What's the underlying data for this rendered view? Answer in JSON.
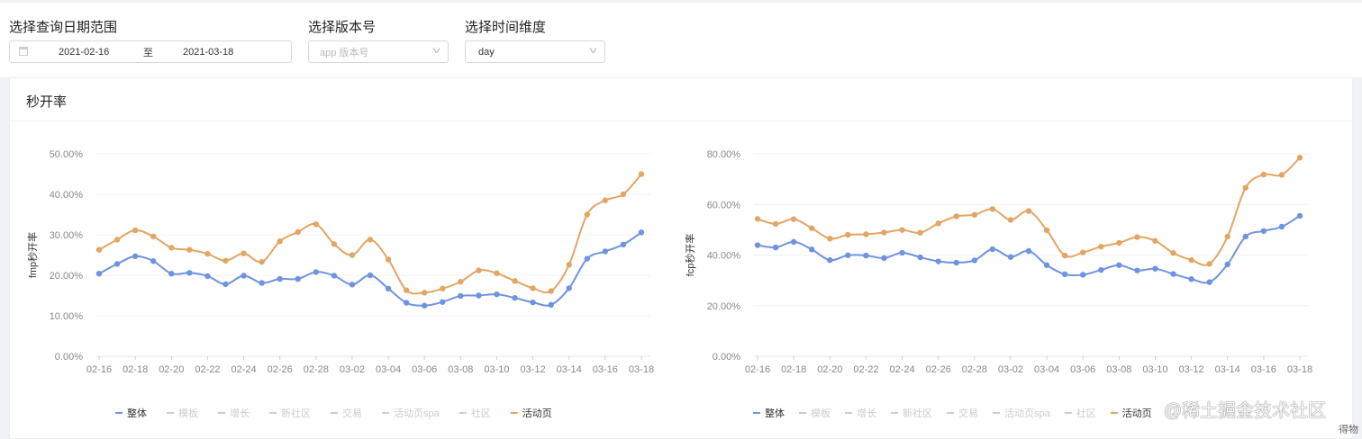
{
  "filters": {
    "date_label": "选择查询日期范围",
    "date_start": "2021-02-16",
    "date_sep": "至",
    "date_end": "2021-03-18",
    "version_label": "选择版本号",
    "version_placeholder": "app 版本号",
    "dimension_label": "选择时间维度",
    "dimension_value": "day"
  },
  "card": {
    "title": "秒开率"
  },
  "watermark": {
    "text": "@稀土掘金技术社区",
    "sub": "得物"
  },
  "colors": {
    "整体": "#6f93e0",
    "活动页": "#e3a564",
    "inactive": "#cccccc"
  },
  "chart_data": [
    {
      "type": "line",
      "ylabel": "fmp秒开率",
      "ylim": [
        0,
        50
      ],
      "yticks": [
        "0.00%",
        "10.00%",
        "20.00%",
        "30.00%",
        "40.00%",
        "50.00%"
      ],
      "grid": true,
      "legend": "bottom",
      "categories": [
        "02-16",
        "02-17",
        "02-18",
        "02-19",
        "02-20",
        "02-21",
        "02-22",
        "02-23",
        "02-24",
        "02-25",
        "02-26",
        "02-27",
        "02-28",
        "03-01",
        "03-02",
        "03-03",
        "03-04",
        "03-05",
        "03-06",
        "03-07",
        "03-08",
        "03-09",
        "03-10",
        "03-11",
        "03-12",
        "03-13",
        "03-14",
        "03-15",
        "03-16",
        "03-17",
        "03-18"
      ],
      "xticks": [
        "02-16",
        "02-18",
        "02-20",
        "02-22",
        "02-24",
        "02-26",
        "02-28",
        "03-02",
        "03-04",
        "03-06",
        "03-08",
        "03-10",
        "03-12",
        "03-14",
        "03-16",
        "03-18"
      ],
      "legend_items": [
        "整体",
        "模板",
        "增长",
        "新社区",
        "交易",
        "活动页spa",
        "社区",
        "活动页"
      ],
      "series": [
        {
          "name": "整体",
          "values": [
            20.4,
            22.8,
            24.7,
            23.5,
            20.4,
            20.6,
            19.8,
            17.8,
            19.9,
            18.1,
            19.1,
            19.1,
            20.8,
            19.9,
            17.7,
            20.0,
            16.7,
            13.2,
            12.5,
            13.4,
            14.9,
            15.0,
            15.3,
            14.4,
            13.3,
            12.7,
            16.8,
            24.1,
            25.9,
            27.6,
            30.6
          ]
        },
        {
          "name": "活动页",
          "values": [
            26.3,
            28.8,
            31.1,
            29.6,
            26.8,
            26.3,
            25.3,
            23.6,
            25.4,
            23.3,
            28.4,
            30.7,
            32.6,
            27.7,
            25.0,
            28.8,
            23.9,
            16.3,
            15.7,
            16.7,
            18.4,
            21.2,
            20.5,
            18.6,
            16.8,
            16.1,
            22.6,
            35.0,
            38.5,
            40.0,
            45.0
          ]
        }
      ]
    },
    {
      "type": "line",
      "ylabel": "fcp秒开率",
      "ylim": [
        0,
        80
      ],
      "yticks": [
        "0.00%",
        "20.00%",
        "40.00%",
        "60.00%",
        "80.00%"
      ],
      "grid": true,
      "legend": "bottom",
      "categories": [
        "02-16",
        "02-17",
        "02-18",
        "02-19",
        "02-20",
        "02-21",
        "02-22",
        "02-23",
        "02-24",
        "02-25",
        "02-26",
        "02-27",
        "02-28",
        "03-01",
        "03-02",
        "03-03",
        "03-04",
        "03-05",
        "03-06",
        "03-07",
        "03-08",
        "03-09",
        "03-10",
        "03-11",
        "03-12",
        "03-13",
        "03-14",
        "03-15",
        "03-16",
        "03-17",
        "03-18"
      ],
      "xticks": [
        "02-16",
        "02-18",
        "02-20",
        "02-22",
        "02-24",
        "02-26",
        "02-28",
        "03-02",
        "03-04",
        "03-06",
        "03-08",
        "03-10",
        "03-12",
        "03-14",
        "03-16",
        "03-18"
      ],
      "legend_items": [
        "整体",
        "模板",
        "增长",
        "新社区",
        "交易",
        "活动页spa",
        "社区",
        "活动页"
      ],
      "series": [
        {
          "name": "整体",
          "values": [
            43.9,
            43.0,
            45.2,
            42.2,
            38.0,
            39.9,
            39.8,
            38.8,
            40.9,
            39.1,
            37.5,
            37.0,
            37.9,
            42.3,
            39.2,
            41.6,
            36.0,
            32.4,
            32.2,
            34.1,
            36.0,
            33.9,
            34.6,
            32.5,
            30.5,
            29.3,
            36.3,
            47.3,
            49.5,
            51.2,
            55.5
          ]
        },
        {
          "name": "活动页",
          "values": [
            54.3,
            52.3,
            54.2,
            50.6,
            46.5,
            48.0,
            48.2,
            48.9,
            49.9,
            48.8,
            52.5,
            55.3,
            55.9,
            58.2,
            53.9,
            57.4,
            49.8,
            39.8,
            41.0,
            43.3,
            44.8,
            47.1,
            45.6,
            40.8,
            38.0,
            36.5,
            47.3,
            66.6,
            71.8,
            71.7,
            78.5
          ]
        }
      ]
    }
  ]
}
